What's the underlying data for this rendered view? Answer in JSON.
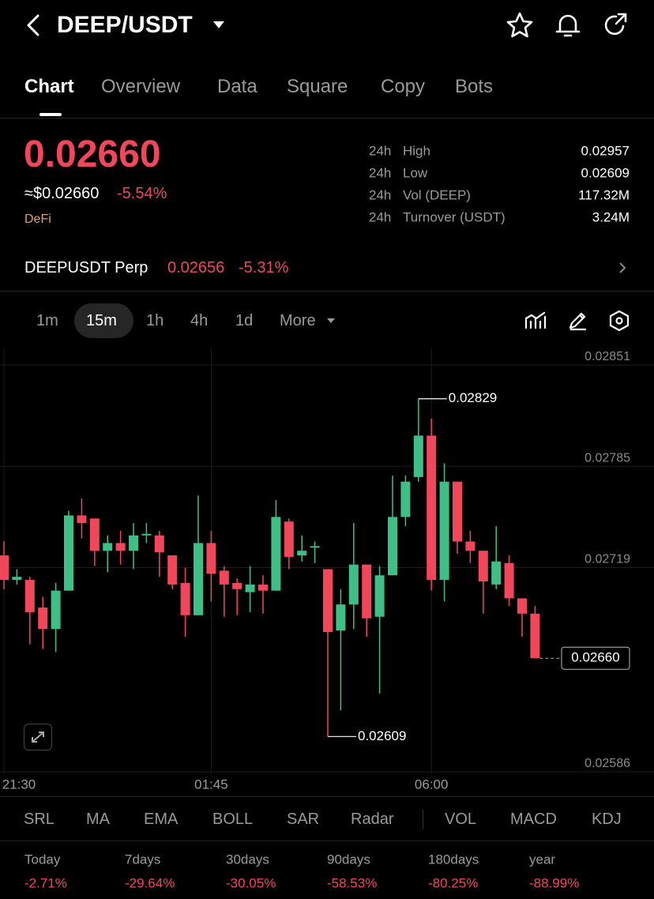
{
  "header": {
    "title": "DEEP/USDT"
  },
  "tabs": [
    "Chart",
    "Overview",
    "Data",
    "Square",
    "Copy",
    "Bots"
  ],
  "price": {
    "last": "0.02660",
    "fiat": "≈$0.02660",
    "change": "-5.54%",
    "tag": "DeFi"
  },
  "stats": [
    {
      "period": "24h",
      "label": "High",
      "value": "0.02957"
    },
    {
      "period": "24h",
      "label": "Low",
      "value": "0.02609"
    },
    {
      "period": "24h",
      "label": "Vol (DEEP)",
      "value": "117.32M"
    },
    {
      "period": "24h",
      "label": "Turnover (USDT)",
      "value": "3.24M"
    }
  ],
  "perp": {
    "name": "DEEPUSDT Perp",
    "price": "0.02656",
    "change": "-5.31%"
  },
  "intervals": [
    "1m",
    "15m",
    "1h",
    "4h",
    "1d",
    "More"
  ],
  "chart_data": {
    "type": "candlestick",
    "categories": [
      "21:30",
      null,
      null,
      null,
      null,
      null,
      null,
      null,
      null,
      null,
      null,
      null,
      null,
      null,
      null,
      null,
      "01:45",
      null,
      null,
      null,
      null,
      null,
      null,
      null,
      null,
      null,
      null,
      null,
      null,
      null,
      null,
      null,
      null,
      "06:00",
      null,
      null,
      null,
      null,
      null,
      null,
      null,
      null
    ],
    "open": [
      0.02727,
      0.02711,
      0.02711,
      0.02693,
      0.02679,
      0.02704,
      0.02753,
      0.02751,
      0.0273,
      0.02735,
      0.0273,
      0.0274,
      0.0274,
      0.02727,
      0.02709,
      0.02688,
      0.02735,
      0.02717,
      0.02709,
      0.02703,
      0.02708,
      0.02704,
      0.02749,
      0.02727,
      0.02732,
      0.02718,
      0.02678,
      0.02695,
      0.02721,
      0.02687,
      0.02714,
      0.02752,
      0.02778,
      0.02805,
      0.02711,
      0.02775,
      0.02736,
      0.0273,
      0.02708,
      0.02722,
      0.02699,
      0.02689
    ],
    "high": [
      0.02736,
      0.02718,
      0.02713,
      0.027,
      0.02709,
      0.02756,
      0.02764,
      0.02751,
      0.0274,
      0.02743,
      0.02748,
      0.02748,
      0.02743,
      0.02727,
      0.02719,
      0.02766,
      0.02743,
      0.0272,
      0.02712,
      0.0272,
      0.02714,
      0.02763,
      0.02751,
      0.0274,
      0.02736,
      0.02718,
      0.02705,
      0.02748,
      0.02721,
      0.0272,
      0.02779,
      0.02779,
      0.02829,
      0.02816,
      0.02787,
      0.02775,
      0.02743,
      0.0273,
      0.02746,
      0.02727,
      0.02699,
      0.02694
    ],
    "low": [
      0.02705,
      0.02708,
      0.02669,
      0.02666,
      0.02664,
      0.02704,
      0.02738,
      0.0272,
      0.02716,
      0.02721,
      0.02718,
      0.02735,
      0.02713,
      0.02705,
      0.02674,
      0.02688,
      0.02697,
      0.02687,
      0.02688,
      0.0269,
      0.02689,
      0.02704,
      0.02718,
      0.02723,
      0.02722,
      0.02609,
      0.02626,
      0.02679,
      0.02674,
      0.02637,
      0.02714,
      0.02746,
      0.02775,
      0.02704,
      0.02697,
      0.02728,
      0.02722,
      0.02689,
      0.02705,
      0.02694,
      0.02674,
      0.0266
    ],
    "close": [
      0.02711,
      0.02713,
      0.0269,
      0.02679,
      0.02704,
      0.02753,
      0.02748,
      0.0273,
      0.02735,
      0.0273,
      0.0274,
      0.02741,
      0.02729,
      0.02708,
      0.02688,
      0.02735,
      0.02715,
      0.02708,
      0.02705,
      0.02708,
      0.02704,
      0.02752,
      0.02726,
      0.0273,
      0.02733,
      0.02677,
      0.02695,
      0.02721,
      0.02686,
      0.02714,
      0.02752,
      0.02775,
      0.02805,
      0.02711,
      0.02775,
      0.02736,
      0.0273,
      0.0271,
      0.02723,
      0.02699,
      0.02689,
      0.0266
    ],
    "up_color": "#3fbf85",
    "down_color": "#f0475b",
    "ylim": [
      0.02586,
      0.02851
    ],
    "yticks": [
      0.02586,
      0.02719,
      0.02785,
      0.02851
    ],
    "grid": true,
    "max_marker": {
      "value": 0.02829,
      "label": "0.02829"
    },
    "min_marker": {
      "value": 0.02609,
      "label": "0.02609"
    },
    "last_price": {
      "value": 0.0266,
      "label": "0.02660"
    }
  },
  "indicators": [
    "SRL",
    "MA",
    "EMA",
    "BOLL",
    "SAR",
    "Radar",
    "VOL",
    "MACD",
    "KDJ"
  ],
  "performance": [
    {
      "period": "Today",
      "change": "-2.71%"
    },
    {
      "period": "7days",
      "change": "-29.64%"
    },
    {
      "period": "30days",
      "change": "-30.05%"
    },
    {
      "period": "90days",
      "change": "-58.53%"
    },
    {
      "period": "180days",
      "change": "-80.25%"
    },
    {
      "period": "year",
      "change": "-88.99%"
    }
  ]
}
